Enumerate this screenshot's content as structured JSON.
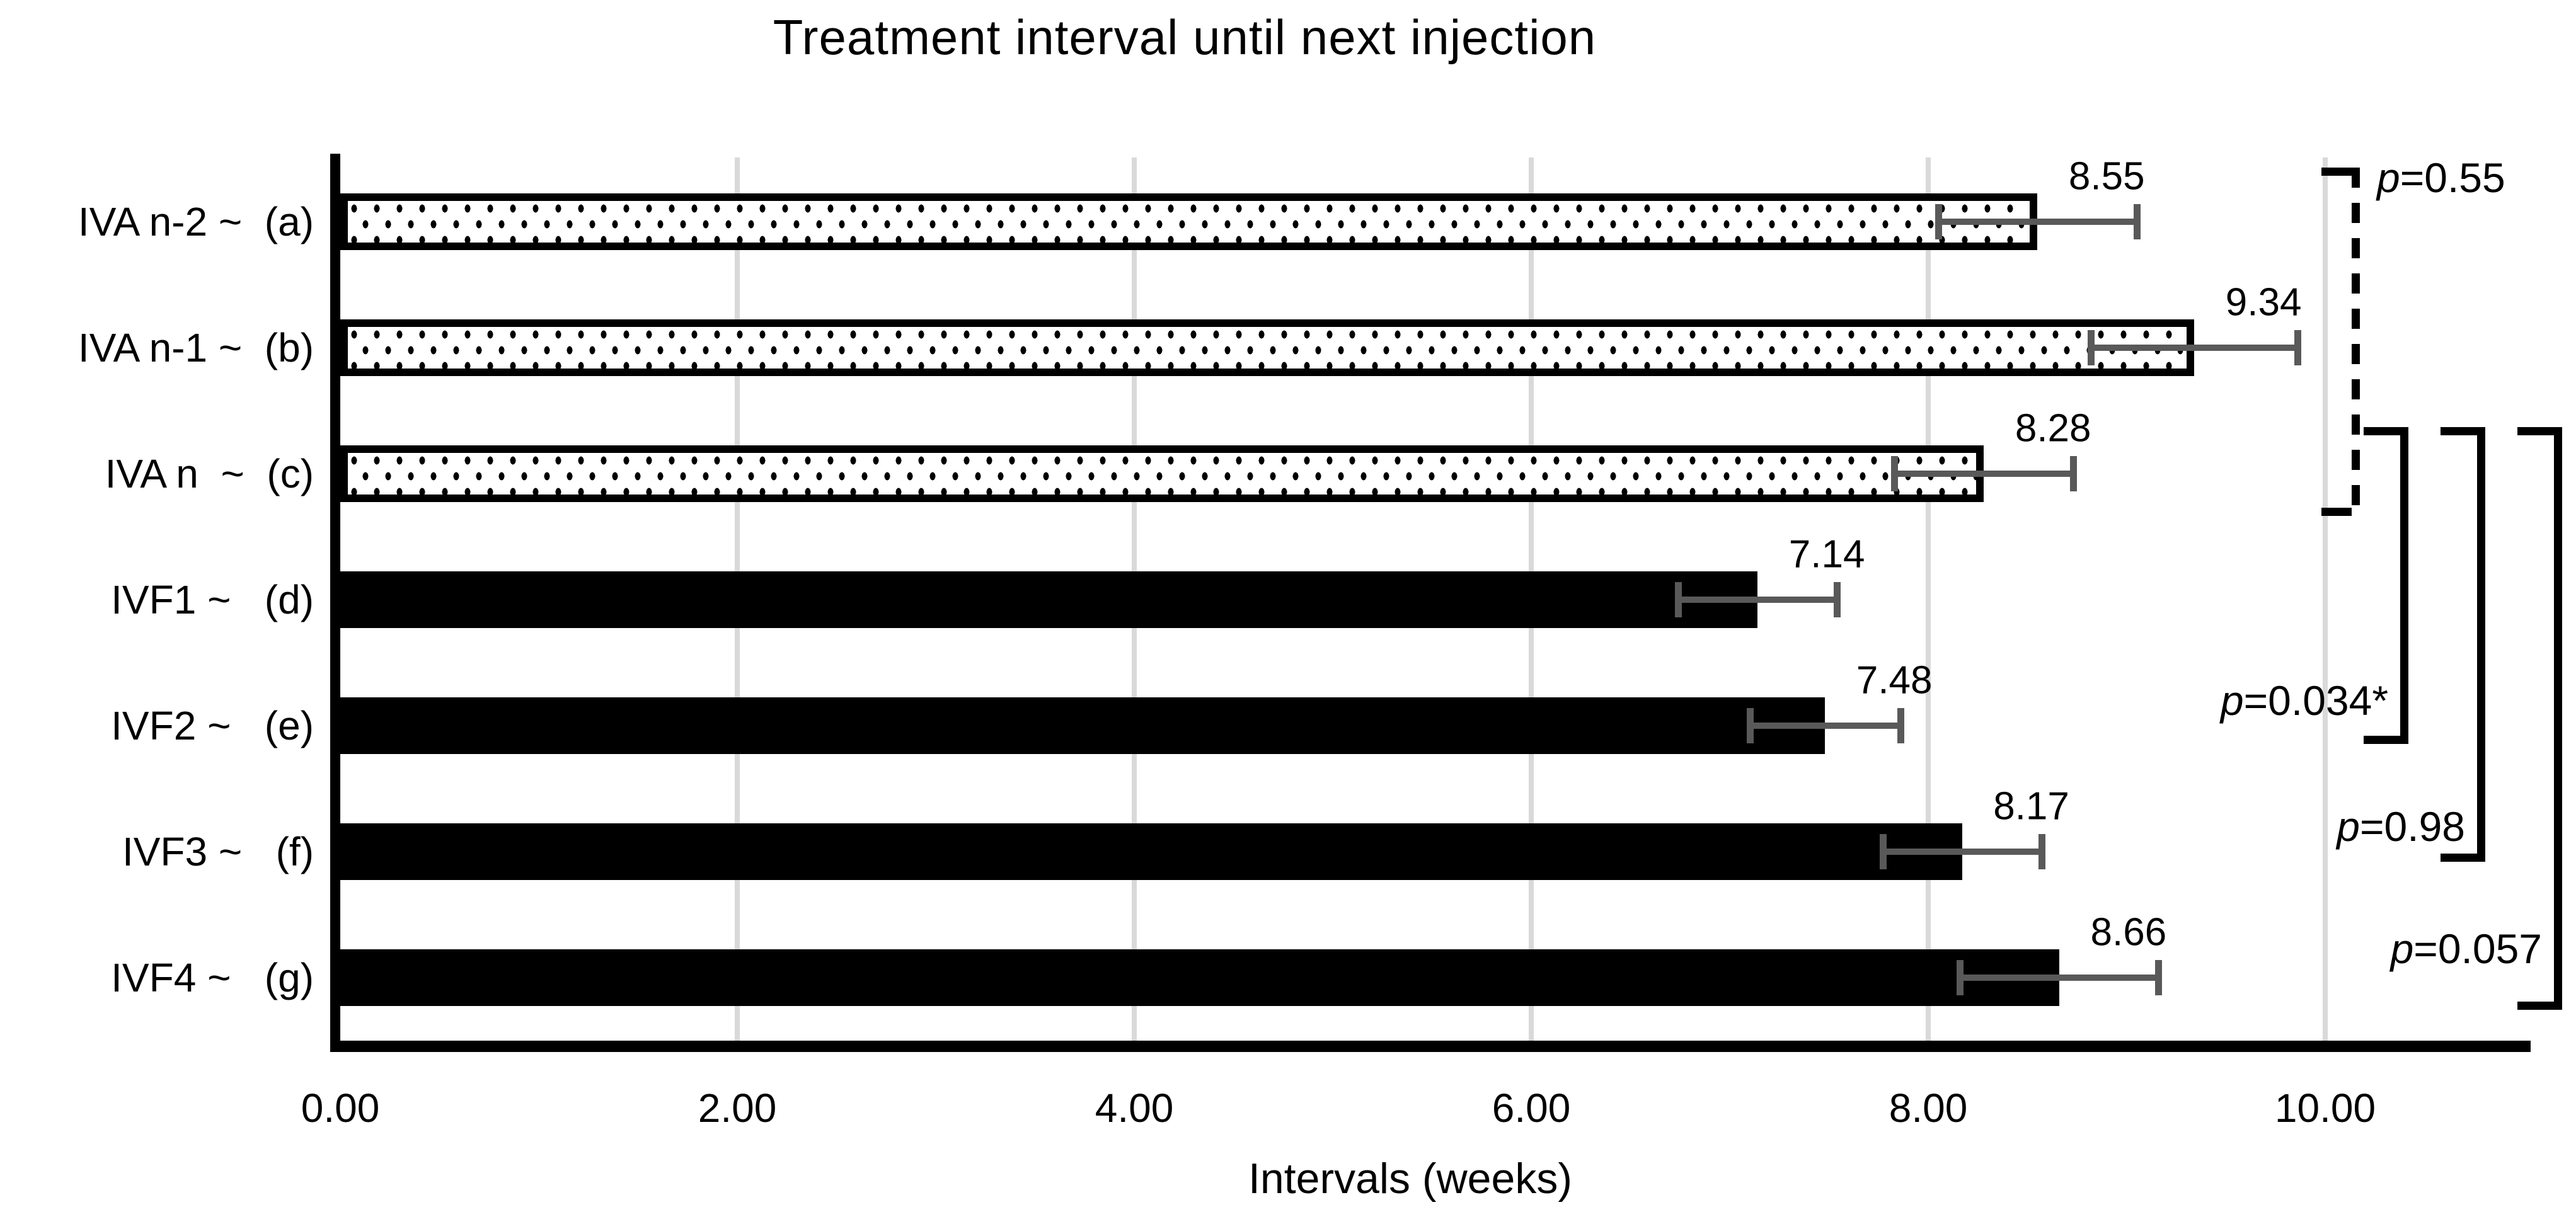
{
  "chart_data": {
    "type": "bar",
    "orientation": "horizontal",
    "title": "Treatment interval until next injection",
    "xlabel": "Intervals (weeks)",
    "xlim": [
      0,
      11.26
    ],
    "grid": "vertical light-gray lines at each x tick",
    "legend": "none",
    "x_ticks": [
      {
        "label": "0.00",
        "value": 0
      },
      {
        "label": "2.00",
        "value": 2
      },
      {
        "label": "4.00",
        "value": 4
      },
      {
        "label": "6.00",
        "value": 6
      },
      {
        "label": "8.00",
        "value": 8
      },
      {
        "label": "10.00",
        "value": 10
      }
    ],
    "rows": [
      {
        "id": "a",
        "label": "IVA n-2 ~  (a)",
        "value": 8.55,
        "value_label": "8.55",
        "error": 0.5,
        "fill": "dotted"
      },
      {
        "id": "b",
        "label": "IVA n-1 ~  (b)",
        "value": 9.34,
        "value_label": "9.34",
        "error": 0.52,
        "fill": "dotted"
      },
      {
        "id": "c",
        "label": "IVA n  ~  (c)",
        "value": 8.28,
        "value_label": "8.28",
        "error": 0.45,
        "fill": "dotted"
      },
      {
        "id": "d",
        "label": "IVF1 ~   (d)",
        "value": 7.14,
        "value_label": "7.14",
        "error": 0.4,
        "fill": "solid"
      },
      {
        "id": "e",
        "label": "IVF2 ~   (e)",
        "value": 7.48,
        "value_label": "7.48",
        "error": 0.38,
        "fill": "solid"
      },
      {
        "id": "f",
        "label": "IVF3 ~   (f)",
        "value": 8.17,
        "value_label": "8.17",
        "error": 0.4,
        "fill": "solid"
      },
      {
        "id": "g",
        "label": "IVF4 ~   (g)",
        "value": 8.66,
        "value_label": "8.66",
        "error": 0.5,
        "fill": "solid"
      }
    ],
    "comparisons": [
      {
        "label": "p=0.55",
        "style": "dashed",
        "from_row": "a",
        "to_row": "c",
        "label_side": "right"
      },
      {
        "label": "p=0.034*",
        "style": "solid",
        "from_row": "c",
        "to_row": "e",
        "label_side": "left"
      },
      {
        "label": "p=0.98",
        "style": "solid",
        "from_row": "c",
        "to_row": "f",
        "label_side": "left"
      },
      {
        "label": "p=0.057",
        "style": "solid",
        "from_row": "c",
        "to_row": "g",
        "label_side": "left"
      }
    ],
    "colors": {
      "bar_solid": "#000000",
      "bar_dotted_background": "#ffffff",
      "bar_border": "#000000",
      "error_bar": "#595959",
      "gridline": "#d9d9d9",
      "axis": "#000000",
      "text": "#000000",
      "background": "#ffffff"
    }
  }
}
